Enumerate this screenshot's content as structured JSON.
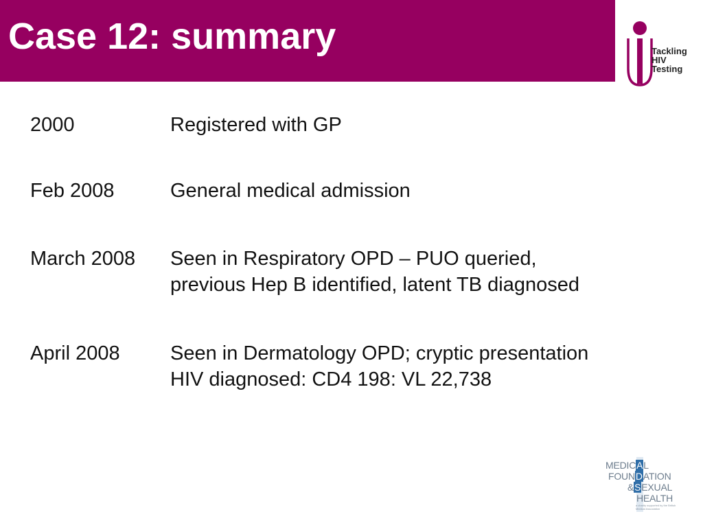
{
  "slide": {
    "title": "Case 12: summary"
  },
  "logo_top": {
    "icon": "tackling-hiv-testing-logo-icon",
    "line1": "Tackling",
    "line2": "HIV",
    "line3": "Testing",
    "color": "#960060"
  },
  "timeline": [
    {
      "date": "2000",
      "lines": [
        "Registered with GP"
      ]
    },
    {
      "date": "Feb 2008",
      "lines": [
        "General medical admission"
      ]
    },
    {
      "date": "March 2008",
      "lines": [
        "Seen in Respiratory OPD – PUO queried,",
        "previous Hep B identified, latent TB diagnosed"
      ]
    },
    {
      "date": "April 2008",
      "lines": [
        "Seen in Dermatology OPD; cryptic presentation",
        "HIV diagnosed: CD4 198: VL 22,738"
      ]
    }
  ],
  "logo_bottom": {
    "icon": "medfash-logo-icon",
    "l1a": "MEDIC",
    "l1b": "A",
    "l1c": "L",
    "l2a": "FOUN",
    "l2b": "D",
    "l2c": "ATION",
    "l3a": "&",
    "l3b": "S",
    "l3c": "EXUAL",
    "l4a": "HEALTH",
    "tagline": "a charity supported by the British Medical Association",
    "accent": "#2f6ea8"
  },
  "colors": {
    "header": "#960060",
    "title_text": "#ffffff",
    "body_text": "#111111"
  }
}
